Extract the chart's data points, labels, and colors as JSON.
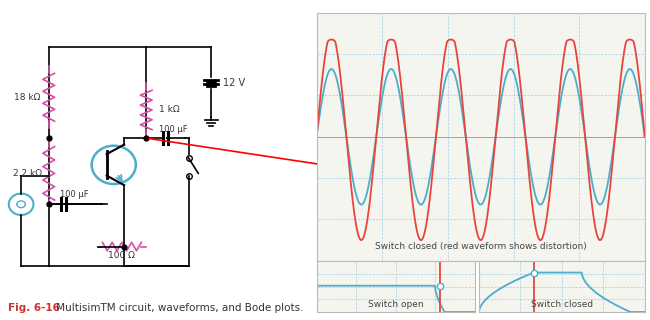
{
  "bg_color": "#ffffff",
  "resistor_color": "#d44faa",
  "cap_color": "#4aaecc",
  "wire_color": "#000000",
  "waveform_red": "#e8453c",
  "waveform_blue": "#4aaecc",
  "bode_curve_color": "#4aaecc",
  "grid_color": "#9ecae1",
  "panel_bg": "#f5f5f0",
  "title_text": "Switch closed (red waveform shows distortion)",
  "label_open": "Switch open",
  "label_closed": "Switch closed",
  "fig_caption": "Fig. 6-16",
  "fig_caption2": " MultisimTM circuit, waveforms, and Bode plots.",
  "label_18k": "18 kΩ",
  "label_1k": "1 kΩ",
  "label_100uF_top": "100 μF",
  "label_2k2": "2.2 kΩ",
  "label_100R": "100 Ω",
  "label_100uF_bot": "100 μF",
  "label_12V": "12 V"
}
